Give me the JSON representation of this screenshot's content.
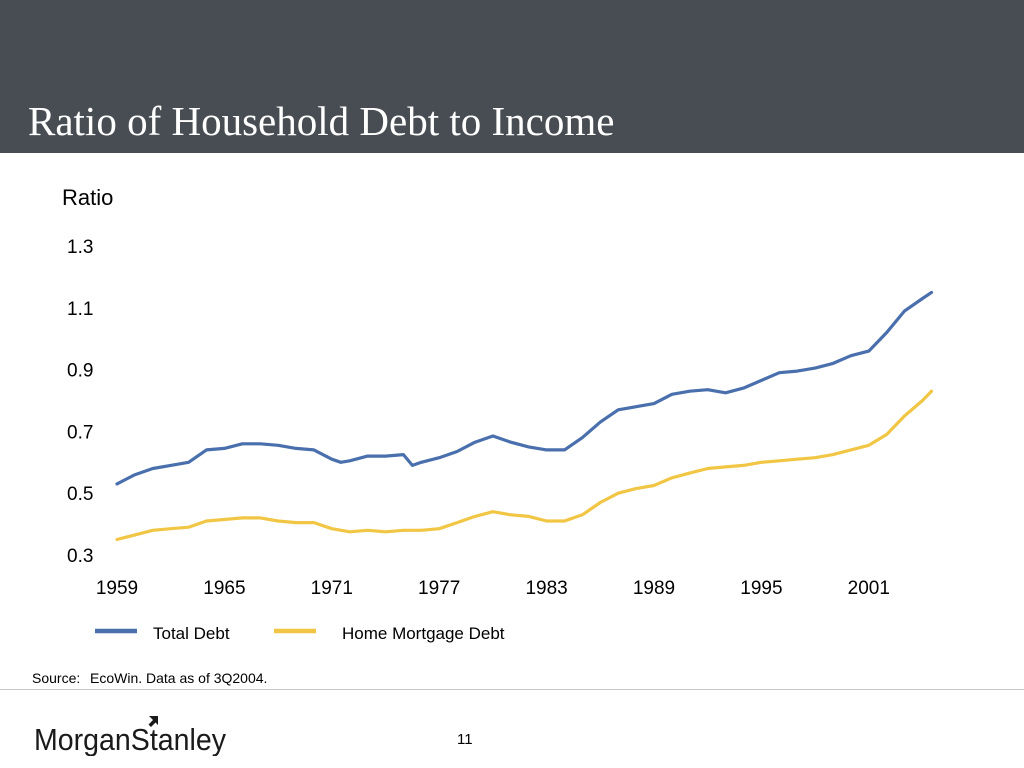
{
  "header": {
    "title": "Ratio of Household Debt to Income"
  },
  "brand": {
    "name": "Morgan Stanley"
  },
  "footer": {
    "source_label": "Source:",
    "source_text": "EcoWin. Data as of 3Q2004.",
    "page_number": "11"
  },
  "colors": {
    "header_bg": "#474d52",
    "total_debt": "#4a6fad",
    "home_mortgage_debt": "#f2c645"
  },
  "chart_data": {
    "type": "line",
    "title": "",
    "ylabel": "Ratio",
    "xlabel": "",
    "ylim": [
      0.3,
      1.3
    ],
    "xlim": [
      1959,
      2005
    ],
    "yticks": [
      "1.3",
      "1.1",
      "0.9",
      "0.7",
      "0.5",
      "0.3"
    ],
    "xticks": [
      "1959",
      "1965",
      "1971",
      "1977",
      "1983",
      "1989",
      "1995",
      "2001"
    ],
    "grid": false,
    "legend": "bottom",
    "series": [
      {
        "name": "Total Debt",
        "points": [
          [
            1959.0,
            0.53
          ],
          [
            1960.0,
            0.56
          ],
          [
            1961.0,
            0.58
          ],
          [
            1962.0,
            0.59
          ],
          [
            1963.0,
            0.6
          ],
          [
            1964.0,
            0.64
          ],
          [
            1965.0,
            0.645
          ],
          [
            1966.0,
            0.66
          ],
          [
            1967.0,
            0.66
          ],
          [
            1968.0,
            0.655
          ],
          [
            1969.0,
            0.645
          ],
          [
            1970.0,
            0.64
          ],
          [
            1971.0,
            0.61
          ],
          [
            1971.5,
            0.6
          ],
          [
            1972.0,
            0.605
          ],
          [
            1973.0,
            0.62
          ],
          [
            1974.0,
            0.62
          ],
          [
            1975.0,
            0.625
          ],
          [
            1975.5,
            0.59
          ],
          [
            1976.0,
            0.6
          ],
          [
            1977.0,
            0.615
          ],
          [
            1978.0,
            0.635
          ],
          [
            1979.0,
            0.665
          ],
          [
            1980.0,
            0.685
          ],
          [
            1981.0,
            0.665
          ],
          [
            1982.0,
            0.65
          ],
          [
            1983.0,
            0.64
          ],
          [
            1984.0,
            0.64
          ],
          [
            1985.0,
            0.68
          ],
          [
            1986.0,
            0.73
          ],
          [
            1987.0,
            0.77
          ],
          [
            1988.0,
            0.78
          ],
          [
            1989.0,
            0.79
          ],
          [
            1990.0,
            0.82
          ],
          [
            1991.0,
            0.83
          ],
          [
            1992.0,
            0.835
          ],
          [
            1993.0,
            0.825
          ],
          [
            1994.0,
            0.84
          ],
          [
            1995.0,
            0.865
          ],
          [
            1996.0,
            0.89
          ],
          [
            1997.0,
            0.895
          ],
          [
            1998.0,
            0.905
          ],
          [
            1999.0,
            0.92
          ],
          [
            2000.0,
            0.945
          ],
          [
            2001.0,
            0.96
          ],
          [
            2002.0,
            1.02
          ],
          [
            2003.0,
            1.09
          ],
          [
            2004.0,
            1.13
          ],
          [
            2004.5,
            1.15
          ]
        ]
      },
      {
        "name": "Home Mortgage Debt",
        "points": [
          [
            1959.0,
            0.35
          ],
          [
            1960.0,
            0.365
          ],
          [
            1961.0,
            0.38
          ],
          [
            1962.0,
            0.385
          ],
          [
            1963.0,
            0.39
          ],
          [
            1964.0,
            0.41
          ],
          [
            1965.0,
            0.415
          ],
          [
            1966.0,
            0.42
          ],
          [
            1967.0,
            0.42
          ],
          [
            1968.0,
            0.41
          ],
          [
            1969.0,
            0.405
          ],
          [
            1970.0,
            0.405
          ],
          [
            1971.0,
            0.385
          ],
          [
            1972.0,
            0.375
          ],
          [
            1973.0,
            0.38
          ],
          [
            1974.0,
            0.375
          ],
          [
            1975.0,
            0.38
          ],
          [
            1976.0,
            0.38
          ],
          [
            1977.0,
            0.385
          ],
          [
            1978.0,
            0.405
          ],
          [
            1979.0,
            0.425
          ],
          [
            1980.0,
            0.44
          ],
          [
            1981.0,
            0.43
          ],
          [
            1982.0,
            0.425
          ],
          [
            1983.0,
            0.41
          ],
          [
            1984.0,
            0.41
          ],
          [
            1985.0,
            0.43
          ],
          [
            1986.0,
            0.47
          ],
          [
            1987.0,
            0.5
          ],
          [
            1988.0,
            0.515
          ],
          [
            1989.0,
            0.525
          ],
          [
            1990.0,
            0.55
          ],
          [
            1991.0,
            0.565
          ],
          [
            1992.0,
            0.58
          ],
          [
            1993.0,
            0.585
          ],
          [
            1994.0,
            0.59
          ],
          [
            1995.0,
            0.6
          ],
          [
            1996.0,
            0.605
          ],
          [
            1997.0,
            0.61
          ],
          [
            1998.0,
            0.615
          ],
          [
            1999.0,
            0.625
          ],
          [
            2000.0,
            0.64
          ],
          [
            2001.0,
            0.655
          ],
          [
            2002.0,
            0.69
          ],
          [
            2003.0,
            0.75
          ],
          [
            2004.0,
            0.8
          ],
          [
            2004.5,
            0.83
          ]
        ]
      }
    ]
  }
}
